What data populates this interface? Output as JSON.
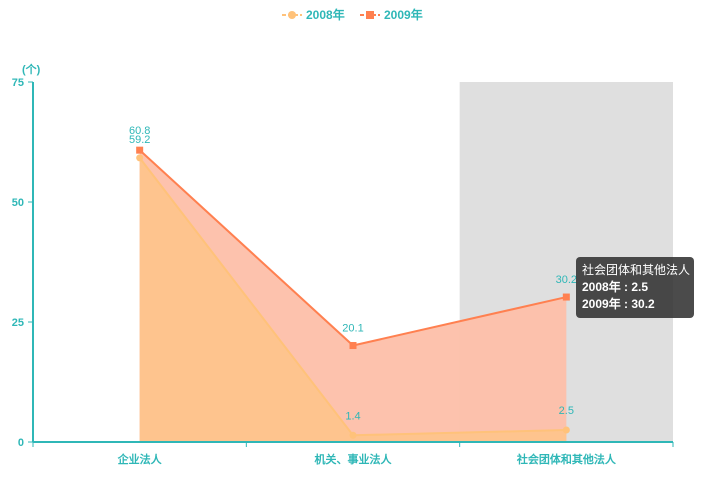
{
  "chart_data": {
    "type": "area",
    "unit": "(个)",
    "categories": [
      "企业法人",
      "机关、事业法人",
      "社会团体和其他法人"
    ],
    "ylim": [
      0,
      75
    ],
    "yticks": [
      0,
      25,
      50,
      75
    ],
    "legend_position": "top-center",
    "series": [
      {
        "name": "2008年",
        "values": [
          59.2,
          1.4,
          2.5
        ],
        "color": "#ffc27a",
        "fill": "#fec48c",
        "marker": "circle"
      },
      {
        "name": "2009年",
        "values": [
          60.8,
          20.1,
          30.2
        ],
        "color": "#ff8050",
        "fill": "#fdbfa9",
        "marker": "square"
      }
    ],
    "highlighted_category": 2,
    "tooltip": {
      "title": "社会团体和其他法人",
      "rows": [
        {
          "name": "2008年",
          "value": "2.5"
        },
        {
          "name": "2009年",
          "value": "30.2"
        }
      ]
    }
  }
}
